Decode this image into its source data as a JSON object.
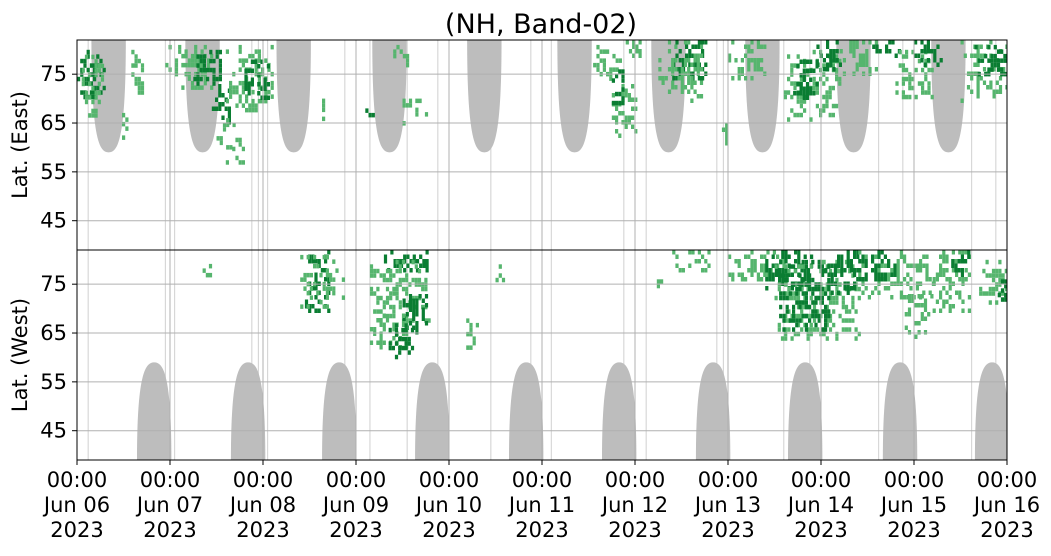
{
  "chart_data": {
    "type": "heatmap",
    "title": "(NH, Band-02)",
    "panels": [
      {
        "name": "east",
        "ylabel": "Lat. (East)",
        "yticks": [
          "45",
          "55",
          "65",
          "75"
        ]
      },
      {
        "name": "west",
        "ylabel": "Lat. (West)",
        "yticks": [
          "75",
          "65",
          "55",
          "45"
        ]
      }
    ],
    "ylim_east": [
      39,
      82
    ],
    "ylim_west": [
      82,
      39
    ],
    "x_tick_labels": [
      [
        "00:00",
        "Jun 06",
        "2023"
      ],
      [
        "00:00",
        "Jun 07",
        "2023"
      ],
      [
        "00:00",
        "Jun 08",
        "2023"
      ],
      [
        "00:00",
        "Jun 09",
        "2023"
      ],
      [
        "00:00",
        "Jun 10",
        "2023"
      ],
      [
        "00:00",
        "Jun 11",
        "2023"
      ],
      [
        "00:00",
        "Jun 12",
        "2023"
      ],
      [
        "00:00",
        "Jun 13",
        "2023"
      ],
      [
        "00:00",
        "Jun 14",
        "2023"
      ],
      [
        "00:00",
        "Jun 15",
        "2023"
      ],
      [
        "00:00",
        "Jun 16",
        "2023"
      ]
    ],
    "xlim": [
      "2023-06-06 00:00",
      "2023-06-16 00:00"
    ],
    "grid": true,
    "colors": {
      "dark": "#0a7d32",
      "light": "#56b56e",
      "gray": "#bdbdbd",
      "grid": "#b0b0b0"
    },
    "gray_regions": {
      "east_centers_day": [
        0.34,
        1.35,
        2.33,
        3.36,
        4.38,
        5.35,
        6.36,
        7.37,
        8.35,
        9.37
      ],
      "west_centers_day": [
        0.83,
        1.84,
        2.82,
        3.82,
        4.83,
        5.83,
        6.84,
        7.83,
        8.85,
        9.84
      ],
      "top_lat": 59,
      "width_days": 0.37
    },
    "activity_blocks": [
      {
        "panel": "east",
        "t": [
          0.0,
          0.3
        ],
        "lat": [
          70,
          80
        ],
        "intensity": "dark"
      },
      {
        "panel": "east",
        "t": [
          0.05,
          0.28
        ],
        "lat": [
          66,
          79
        ],
        "intensity": "light"
      },
      {
        "panel": "east",
        "t": [
          0.45,
          0.55
        ],
        "lat": [
          62,
          68
        ],
        "intensity": "light"
      },
      {
        "panel": "east",
        "t": [
          0.55,
          0.72
        ],
        "lat": [
          71,
          80
        ],
        "intensity": "light"
      },
      {
        "panel": "east",
        "t": [
          0.95,
          1.5
        ],
        "lat": [
          72,
          81
        ],
        "intensity": "light"
      },
      {
        "panel": "east",
        "t": [
          1.25,
          1.55
        ],
        "lat": [
          73,
          80
        ],
        "intensity": "dark"
      },
      {
        "panel": "east",
        "t": [
          1.45,
          1.65
        ],
        "lat": [
          65,
          73
        ],
        "intensity": "dark"
      },
      {
        "panel": "east",
        "t": [
          1.5,
          1.7
        ],
        "lat": [
          60,
          66
        ],
        "intensity": "light"
      },
      {
        "panel": "east",
        "t": [
          1.6,
          1.8
        ],
        "lat": [
          56,
          62
        ],
        "intensity": "light"
      },
      {
        "panel": "east",
        "t": [
          1.6,
          2.1
        ],
        "lat": [
          68,
          81
        ],
        "intensity": "light"
      },
      {
        "panel": "east",
        "t": [
          1.8,
          2.05
        ],
        "lat": [
          70,
          78
        ],
        "intensity": "dark"
      },
      {
        "panel": "east",
        "t": [
          2.6,
          2.7
        ],
        "lat": [
          65,
          70
        ],
        "intensity": "light"
      },
      {
        "panel": "east",
        "t": [
          3.1,
          3.2
        ],
        "lat": [
          66,
          68
        ],
        "intensity": "dark"
      },
      {
        "panel": "east",
        "t": [
          3.5,
          3.75
        ],
        "lat": [
          65,
          70
        ],
        "intensity": "light"
      },
      {
        "panel": "east",
        "t": [
          3.4,
          3.55
        ],
        "lat": [
          77,
          81
        ],
        "intensity": "light"
      },
      {
        "panel": "east",
        "t": [
          5.55,
          5.85
        ],
        "lat": [
          74,
          81
        ],
        "intensity": "light"
      },
      {
        "panel": "east",
        "t": [
          5.75,
          6.0
        ],
        "lat": [
          62,
          73
        ],
        "intensity": "light"
      },
      {
        "panel": "east",
        "t": [
          5.75,
          5.88
        ],
        "lat": [
          69,
          76
        ],
        "intensity": "dark"
      },
      {
        "panel": "east",
        "t": [
          5.9,
          6.1
        ],
        "lat": [
          79,
          82
        ],
        "intensity": "light"
      },
      {
        "panel": "east",
        "t": [
          6.4,
          6.75
        ],
        "lat": [
          74,
          82
        ],
        "intensity": "dark"
      },
      {
        "panel": "east",
        "t": [
          6.25,
          6.7
        ],
        "lat": [
          70,
          82
        ],
        "intensity": "light"
      },
      {
        "panel": "east",
        "t": [
          6.9,
          7.0
        ],
        "lat": [
          61,
          65
        ],
        "intensity": "light"
      },
      {
        "panel": "east",
        "t": [
          7.0,
          7.4
        ],
        "lat": [
          74,
          82
        ],
        "intensity": "light"
      },
      {
        "panel": "east",
        "t": [
          7.6,
          8.2
        ],
        "lat": [
          66,
          80
        ],
        "intensity": "light"
      },
      {
        "panel": "east",
        "t": [
          7.7,
          7.95
        ],
        "lat": [
          70,
          78
        ],
        "intensity": "dark"
      },
      {
        "panel": "east",
        "t": [
          7.95,
          8.2
        ],
        "lat": [
          76,
          82
        ],
        "intensity": "dark"
      },
      {
        "panel": "east",
        "t": [
          8.2,
          8.6
        ],
        "lat": [
          75,
          82
        ],
        "intensity": "light"
      },
      {
        "panel": "east",
        "t": [
          8.55,
          8.85
        ],
        "lat": [
          79,
          82
        ],
        "intensity": "dark"
      },
      {
        "panel": "east",
        "t": [
          8.8,
          9.2
        ],
        "lat": [
          70,
          80
        ],
        "intensity": "light"
      },
      {
        "panel": "east",
        "t": [
          9.0,
          9.3
        ],
        "lat": [
          77,
          82
        ],
        "intensity": "dark"
      },
      {
        "panel": "east",
        "t": [
          9.5,
          10.0
        ],
        "lat": [
          70,
          82
        ],
        "intensity": "light"
      },
      {
        "panel": "east",
        "t": [
          9.65,
          10.0
        ],
        "lat": [
          75,
          81
        ],
        "intensity": "dark"
      },
      {
        "panel": "west",
        "t": [
          1.35,
          1.45
        ],
        "lat": [
          77,
          81
        ],
        "intensity": "light"
      },
      {
        "panel": "west",
        "t": [
          2.45,
          2.7
        ],
        "lat": [
          70,
          82
        ],
        "intensity": "dark"
      },
      {
        "panel": "west",
        "t": [
          2.4,
          2.85
        ],
        "lat": [
          70,
          81
        ],
        "intensity": "light"
      },
      {
        "panel": "west",
        "t": [
          3.3,
          3.75
        ],
        "lat": [
          78,
          82
        ],
        "intensity": "dark"
      },
      {
        "panel": "west",
        "t": [
          3.15,
          3.8
        ],
        "lat": [
          68,
          80
        ],
        "intensity": "light"
      },
      {
        "panel": "west",
        "t": [
          3.5,
          3.75
        ],
        "lat": [
          65,
          73
        ],
        "intensity": "dark"
      },
      {
        "panel": "west",
        "t": [
          3.15,
          3.55
        ],
        "lat": [
          62,
          69
        ],
        "intensity": "light"
      },
      {
        "panel": "west",
        "t": [
          3.35,
          3.6
        ],
        "lat": [
          60,
          67
        ],
        "intensity": "dark"
      },
      {
        "panel": "west",
        "t": [
          4.15,
          4.3
        ],
        "lat": [
          62,
          68
        ],
        "intensity": "light"
      },
      {
        "panel": "west",
        "t": [
          4.5,
          4.6
        ],
        "lat": [
          76,
          80
        ],
        "intensity": "light"
      },
      {
        "panel": "west",
        "t": [
          4.9,
          5.0
        ],
        "lat": [
          70,
          73
        ],
        "intensity": "light"
      },
      {
        "panel": "west",
        "t": [
          6.2,
          6.3
        ],
        "lat": [
          75,
          76
        ],
        "intensity": "light"
      },
      {
        "panel": "west",
        "t": [
          6.4,
          6.8
        ],
        "lat": [
          78,
          82
        ],
        "intensity": "light"
      },
      {
        "panel": "west",
        "t": [
          7.0,
          7.6
        ],
        "lat": [
          76,
          82
        ],
        "intensity": "light"
      },
      {
        "panel": "west",
        "t": [
          7.4,
          7.9
        ],
        "lat": [
          74,
          82
        ],
        "intensity": "dark"
      },
      {
        "panel": "west",
        "t": [
          7.5,
          8.4
        ],
        "lat": [
          64,
          80
        ],
        "intensity": "light"
      },
      {
        "panel": "west",
        "t": [
          7.55,
          8.1
        ],
        "lat": [
          66,
          80
        ],
        "intensity": "dark"
      },
      {
        "panel": "west",
        "t": [
          8.0,
          8.4
        ],
        "lat": [
          73,
          82
        ],
        "intensity": "dark"
      },
      {
        "panel": "west",
        "t": [
          8.4,
          9.2
        ],
        "lat": [
          72,
          82
        ],
        "intensity": "light"
      },
      {
        "panel": "west",
        "t": [
          8.4,
          8.8
        ],
        "lat": [
          76,
          82
        ],
        "intensity": "dark"
      },
      {
        "panel": "west",
        "t": [
          8.9,
          9.2
        ],
        "lat": [
          64,
          73
        ],
        "intensity": "light"
      },
      {
        "panel": "west",
        "t": [
          9.2,
          9.6
        ],
        "lat": [
          70,
          82
        ],
        "intensity": "light"
      },
      {
        "panel": "west",
        "t": [
          9.4,
          9.6
        ],
        "lat": [
          77,
          82
        ],
        "intensity": "dark"
      },
      {
        "panel": "west",
        "t": [
          9.7,
          10.0
        ],
        "lat": [
          71,
          80
        ],
        "intensity": "light"
      },
      {
        "panel": "west",
        "t": [
          9.9,
          10.0
        ],
        "lat": [
          72,
          76
        ],
        "intensity": "dark"
      }
    ]
  }
}
